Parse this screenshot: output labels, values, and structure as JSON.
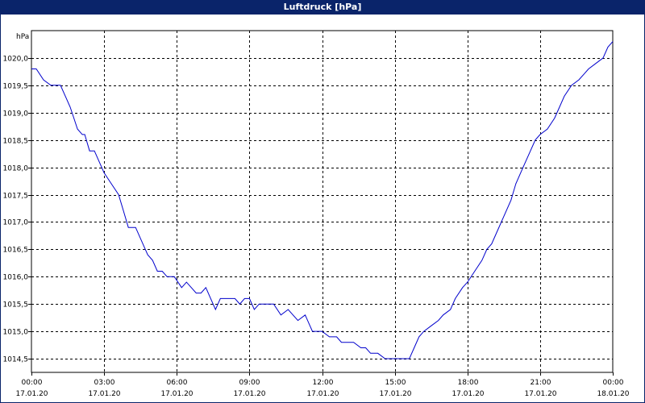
{
  "window": {
    "title": "Luftdruck [hPa]"
  },
  "chart_data": {
    "type": "line",
    "title": "Luftdruck [hPa]",
    "ylabel": "hPa",
    "xlabel": "",
    "ylim": [
      1014.25,
      1020.5
    ],
    "yticks": [
      1014.5,
      1015.0,
      1015.5,
      1016.0,
      1016.5,
      1017.0,
      1017.5,
      1018.0,
      1018.5,
      1019.0,
      1019.5,
      1020.0
    ],
    "ytick_labels": [
      "1014,5",
      "1015,0",
      "1015,5",
      "1016,0",
      "1016,5",
      "1017,0",
      "1017,5",
      "1018,0",
      "1018,5",
      "1019,0",
      "1019,5",
      "1020,0"
    ],
    "xlim": [
      0,
      24
    ],
    "xticks": [
      {
        "time": "00:00",
        "date": "17.01.20",
        "hour": 0
      },
      {
        "time": "03:00",
        "date": "17.01.20",
        "hour": 3
      },
      {
        "time": "06:00",
        "date": "17.01.20",
        "hour": 6
      },
      {
        "time": "09:00",
        "date": "17.01.20",
        "hour": 9
      },
      {
        "time": "12:00",
        "date": "17.01.20",
        "hour": 12
      },
      {
        "time": "15:00",
        "date": "17.01.20",
        "hour": 15
      },
      {
        "time": "18:00",
        "date": "17.01.20",
        "hour": 18
      },
      {
        "time": "21:00",
        "date": "17.01.20",
        "hour": 21
      },
      {
        "time": "00:00",
        "date": "18.01.20",
        "hour": 24
      }
    ],
    "grid": true,
    "line_color": "#0000cc",
    "series": [
      {
        "x": [
          0,
          0.2,
          0.5,
          0.8,
          1.0,
          1.2,
          1.4,
          1.6,
          1.75,
          1.9,
          2.1,
          2.2,
          2.4,
          2.6,
          2.8,
          3.0,
          3.3,
          3.6,
          3.8,
          4.0,
          4.3,
          4.6,
          4.8,
          5.0,
          5.2,
          5.4,
          5.6,
          5.9,
          6.2,
          6.4,
          6.6,
          6.8,
          7.0,
          7.2,
          7.4,
          7.6,
          7.8,
          8.0,
          8.2,
          8.4,
          8.6,
          8.8,
          9.0,
          9.2,
          9.4,
          9.6,
          9.8,
          10.0,
          10.3,
          10.6,
          10.8,
          11.0,
          11.3,
          11.6,
          11.8,
          12.0,
          12.3,
          12.6,
          12.8,
          13.0,
          13.3,
          13.6,
          13.8,
          14.0,
          14.3,
          14.6,
          14.8,
          15.0,
          15.3,
          15.6,
          15.8,
          16.0,
          16.2,
          16.5,
          16.8,
          17.0,
          17.3,
          17.5,
          17.8,
          18.0,
          18.3,
          18.6,
          18.8,
          19.0,
          19.2,
          19.5,
          19.8,
          20.0,
          20.3,
          20.6,
          20.8,
          21.0,
          21.3,
          21.6,
          21.8,
          22.0,
          22.3,
          22.6,
          22.8,
          23.0,
          23.3,
          23.6,
          23.8,
          24.0
        ],
        "y": [
          1019.8,
          1019.8,
          1019.6,
          1019.5,
          1019.5,
          1019.5,
          1019.3,
          1019.1,
          1018.9,
          1018.7,
          1018.6,
          1018.6,
          1018.3,
          1018.3,
          1018.1,
          1017.9,
          1017.7,
          1017.5,
          1017.2,
          1016.9,
          1016.9,
          1016.6,
          1016.4,
          1016.3,
          1016.1,
          1016.1,
          1016.0,
          1016.0,
          1015.8,
          1015.9,
          1015.8,
          1015.7,
          1015.7,
          1015.8,
          1015.6,
          1015.4,
          1015.6,
          1015.6,
          1015.6,
          1015.6,
          1015.5,
          1015.6,
          1015.6,
          1015.4,
          1015.5,
          1015.5,
          1015.5,
          1015.5,
          1015.3,
          1015.4,
          1015.3,
          1015.2,
          1015.3,
          1015.0,
          1015.0,
          1015.0,
          1014.9,
          1014.9,
          1014.8,
          1014.8,
          1014.8,
          1014.7,
          1014.7,
          1014.6,
          1014.6,
          1014.5,
          1014.5,
          1014.5,
          1014.5,
          1014.5,
          1014.7,
          1014.9,
          1015.0,
          1015.1,
          1015.2,
          1015.3,
          1015.4,
          1015.6,
          1015.8,
          1015.9,
          1016.1,
          1016.3,
          1016.5,
          1016.6,
          1016.8,
          1017.1,
          1017.4,
          1017.7,
          1018.0,
          1018.3,
          1018.5,
          1018.6,
          1018.7,
          1018.9,
          1019.1,
          1019.3,
          1019.5,
          1019.6,
          1019.7,
          1019.8,
          1019.9,
          1020.0,
          1020.2,
          1020.3
        ]
      }
    ]
  }
}
